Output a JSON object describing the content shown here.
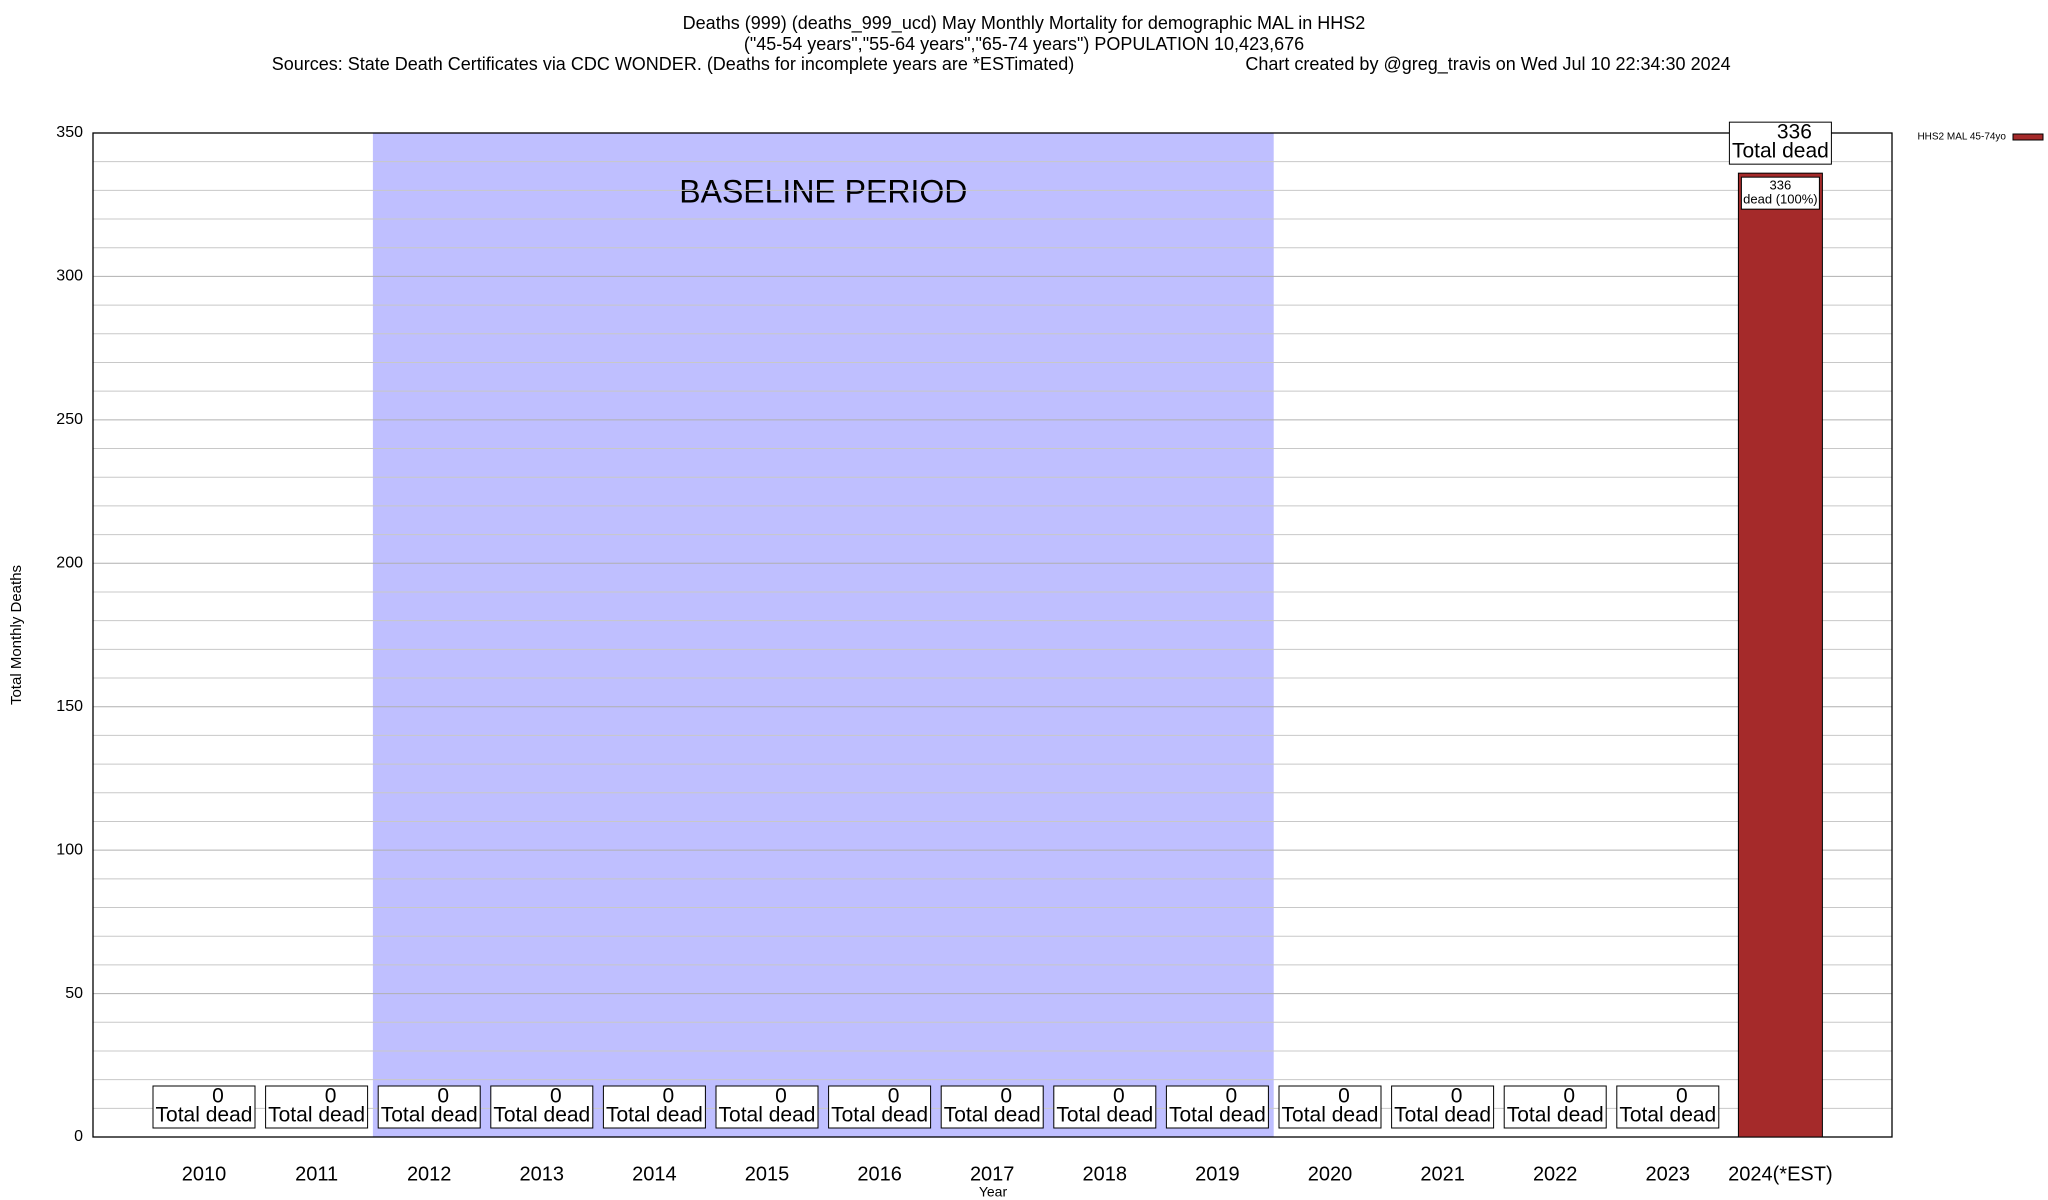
{
  "chart_data": {
    "type": "bar",
    "title": "Deaths (999) (deaths_999_ucd) May Monthly Mortality for demographic MAL in HHS2",
    "subtitle": "(\"45-54 years\",\"55-64 years\",\"65-74 years\") POPULATION 10,423,676",
    "source": "Sources: State Death Certificates via CDC WONDER. (Deaths for incomplete years are *ESTimated)",
    "credit": "Chart created by @greg_travis on Wed Jul 10 22:34:30 2024",
    "x_label": "Year",
    "y_label": "Total Monthly Deaths",
    "categories": [
      "2010",
      "2011",
      "2012",
      "2013",
      "2014",
      "2015",
      "2016",
      "2017",
      "2018",
      "2019",
      "2020",
      "2021",
      "2022",
      "2023",
      "2024(*EST)"
    ],
    "series": [
      {
        "name": "HHS2 MAL 45-74yo",
        "color": "#a52a2a",
        "values": [
          0,
          0,
          0,
          0,
          0,
          0,
          0,
          0,
          0,
          0,
          0,
          0,
          0,
          0,
          336
        ],
        "segment_label": "dead (100%)"
      }
    ],
    "total_label": "Total dead",
    "annotation": {
      "text": "BASELINE PERIOD",
      "from": "2012",
      "to": "2019",
      "color": "#bfbfff"
    },
    "ylim": [
      0,
      350
    ],
    "yticks": [
      0,
      50,
      100,
      150,
      200,
      250,
      300,
      350
    ],
    "minor_step": 10,
    "grid": true,
    "legend": "top-right"
  }
}
